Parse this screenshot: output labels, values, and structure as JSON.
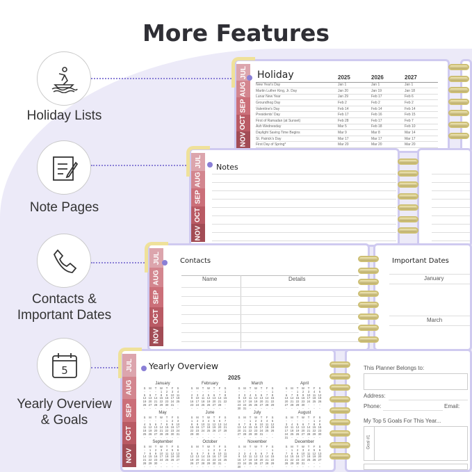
{
  "title": "More Features",
  "features": [
    {
      "label": "Holiday Lists",
      "icon": "jet-ski-icon"
    },
    {
      "label": "Note Pages",
      "icon": "notepad-pen-icon"
    },
    {
      "label": "Contacts &",
      "label2": "Important Dates",
      "icon": "phone-icon"
    },
    {
      "label": "Yearly Overview",
      "label2": "& Goals",
      "icon": "calendar-icon",
      "icon_text": "5"
    }
  ],
  "tabs": [
    "JUL",
    "AUG",
    "SEP",
    "OCT",
    "NOV"
  ],
  "tab_colors": [
    "#dca5ad",
    "#d3868f",
    "#cb6f79",
    "#b95a64",
    "#a24c55"
  ],
  "accent": "#8a7fd6",
  "holiday": {
    "title": "Holiday",
    "years": [
      "2025",
      "2026",
      "2027"
    ],
    "rows": [
      [
        "New Year's Day",
        "Jan 1",
        "Jan 1",
        "Jan 1"
      ],
      [
        "Martin Luther King, Jr. Day",
        "Jan 20",
        "Jan 19",
        "Jan 18"
      ],
      [
        "Lunar New Year",
        "Jan 29",
        "Feb 17",
        "Feb 6"
      ],
      [
        "Groundhog Day",
        "Feb 2",
        "Feb 2",
        "Feb 2"
      ],
      [
        "Valentine's Day",
        "Feb 14",
        "Feb 14",
        "Feb 14"
      ],
      [
        "Presidents' Day",
        "Feb 17",
        "Feb 16",
        "Feb 15"
      ],
      [
        "First of Ramadan (at Sunset)",
        "Feb 28",
        "Feb 17",
        "Feb 7"
      ],
      [
        "Ash Wednesday",
        "Mar 5",
        "Feb 18",
        "Feb 10"
      ],
      [
        "Daylight Saving Time Begins",
        "Mar 9",
        "Mar 8",
        "Mar 14"
      ],
      [
        "St. Patrick's Day",
        "Mar 17",
        "Mar 17",
        "Mar 17"
      ],
      [
        "First Day of Spring*",
        "Mar 20",
        "Mar 20",
        "Mar 20"
      ]
    ]
  },
  "notes": {
    "title": "Notes"
  },
  "contacts": {
    "title": "Contacts",
    "col_name": "Name",
    "col_details": "Details"
  },
  "important": {
    "title": "Important Dates",
    "months": [
      "January",
      "March"
    ]
  },
  "yearly": {
    "title": "Yearly Overview",
    "year": "2025",
    "weekdays": [
      "S",
      "M",
      "T",
      "W",
      "T",
      "F",
      "S"
    ],
    "months": [
      "January",
      "February",
      "March",
      "April",
      "May",
      "June",
      "July",
      "August",
      "September",
      "October",
      "November",
      "December"
    ]
  },
  "goals": {
    "belongs": "This Planner Belongs to:",
    "address": "Address:",
    "phone": "Phone:",
    "email": "Email:",
    "top5": "My Top 5 Goals For This Year...",
    "goal1": "Goal #1"
  }
}
